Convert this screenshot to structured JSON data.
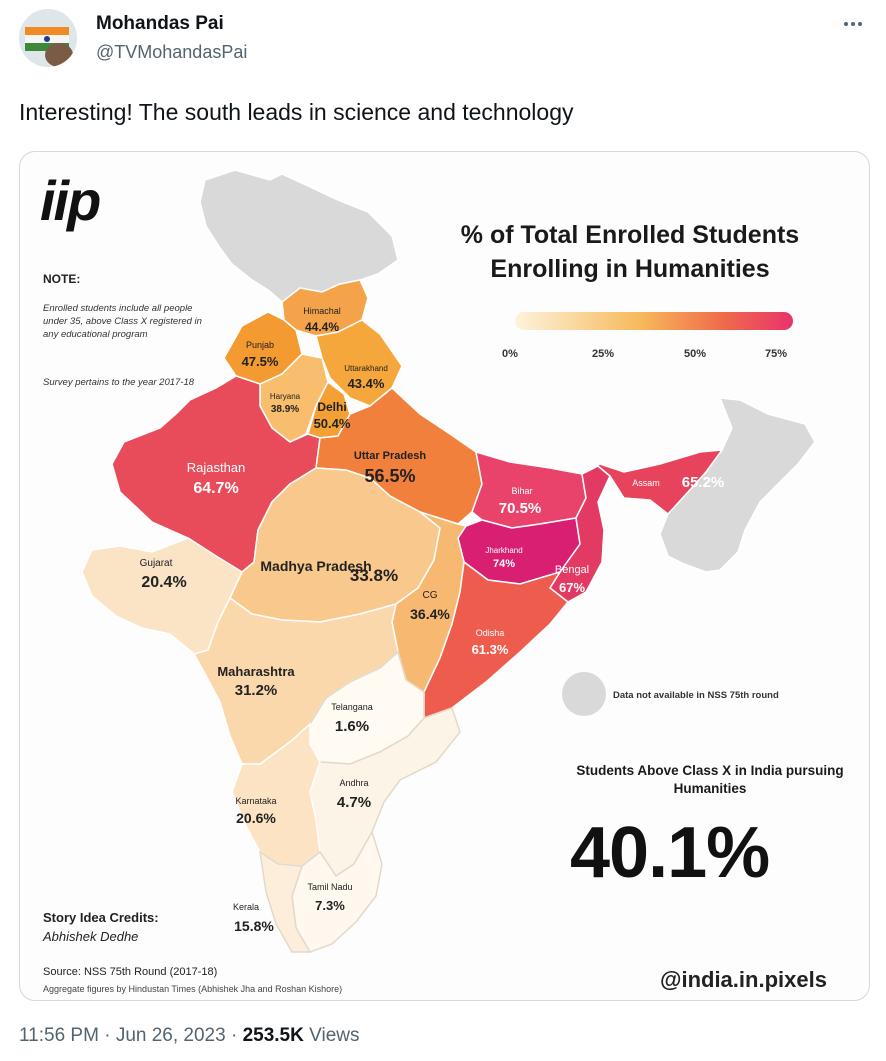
{
  "tweet": {
    "author_name": "Mohandas Pai",
    "author_handle": "@TVMohandasPai",
    "text": "Interesting! The south leads in science and technology",
    "time": "11:56 PM",
    "date": "Jun 26, 2023",
    "views_count": "253.5K",
    "views_label": "Views",
    "separator": "·"
  },
  "icons": {
    "more": "more-horizontal-icon",
    "avatar": "profile-avatar"
  },
  "infographic": {
    "logo": "iip",
    "note_heading": "NOTE:",
    "note_text": "Enrolled students include all people under 35, above Class X registered in any educational program",
    "note_survey": "Survey pertains to the year 2017-18",
    "title": "% of Total Enrolled Students Enrolling in Humanities",
    "legend_ticks": [
      "0%",
      "25%",
      "50%",
      "75%"
    ],
    "na_note": "Data not available in NSS 75th round",
    "stat_label": "Students Above Class X in India pursuing Humanities",
    "stat_value": "40.1%",
    "credits_heading": "Story Idea Credits:",
    "credits_name": "Abhishek Dedhe",
    "source": "Source: NSS 75th Round (2017-18)",
    "source_note": "Aggregate figures by Hindustan Times (Abhishek Jha and Roshan Kishore)",
    "handle": "@india.in.pixels",
    "states": [
      {
        "name": "Himachal",
        "value": "44.4%"
      },
      {
        "name": "Punjab",
        "value": "47.5%"
      },
      {
        "name": "Uttarakhand",
        "value": "43.4%"
      },
      {
        "name": "Haryana",
        "value": "38.9%"
      },
      {
        "name": "Delhi",
        "value": "50.4%"
      },
      {
        "name": "Rajasthan",
        "value": "64.7%"
      },
      {
        "name": "Uttar Pradesh",
        "value": "56.5%"
      },
      {
        "name": "Bihar",
        "value": "70.5%"
      },
      {
        "name": "Assam",
        "value": "65.2%"
      },
      {
        "name": "Jharkhand",
        "value": "74%"
      },
      {
        "name": "Bengal",
        "value": "67%"
      },
      {
        "name": "Gujarat",
        "value": "20.4%"
      },
      {
        "name": "Madhya Pradesh",
        "value": "33.8%"
      },
      {
        "name": "CG",
        "value": "36.4%"
      },
      {
        "name": "Odisha",
        "value": "61.3%"
      },
      {
        "name": "Maharashtra",
        "value": "31.2%"
      },
      {
        "name": "Telangana",
        "value": "1.6%"
      },
      {
        "name": "Andhra",
        "value": "4.7%"
      },
      {
        "name": "Karnataka",
        "value": "20.6%"
      },
      {
        "name": "Tamil Nadu",
        "value": "7.3%"
      },
      {
        "name": "Kerala",
        "value": "15.8%"
      }
    ],
    "colors": {
      "scale_low": "#fdf0d6",
      "scale_mid": "#f6a94a",
      "scale_high": "#e63a6a",
      "no_data": "#d9d9d9"
    }
  }
}
